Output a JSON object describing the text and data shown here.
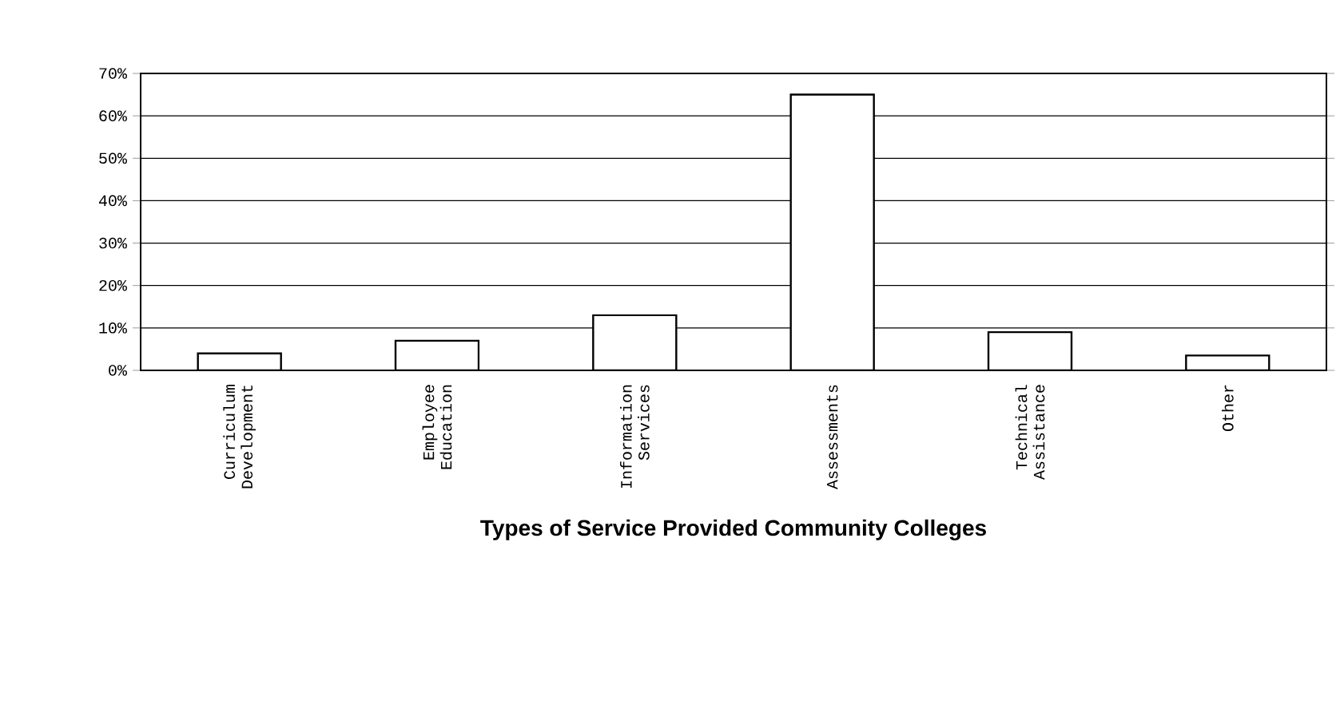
{
  "chart_data": {
    "type": "bar",
    "xlabel": "Types of Service Provided Community Colleges",
    "categories": [
      "Curriculum Development",
      "Employee Education",
      "Information Services",
      "Assessments",
      "Technical Assistance",
      "Other"
    ],
    "values": [
      4,
      7,
      13,
      65,
      9,
      3.5
    ],
    "color": "#ffffff",
    "ylim": [
      0,
      70
    ],
    "yticks": [
      {
        "value": 0,
        "label": "0%"
      },
      {
        "value": 10,
        "label": "10%"
      },
      {
        "value": 20,
        "label": "20%"
      },
      {
        "value": 30,
        "label": "30%"
      },
      {
        "value": 40,
        "label": "40%"
      },
      {
        "value": 50,
        "label": "50%"
      },
      {
        "value": 60,
        "label": "60%"
      },
      {
        "value": 70,
        "label": "70%"
      }
    ],
    "grid": "y"
  }
}
